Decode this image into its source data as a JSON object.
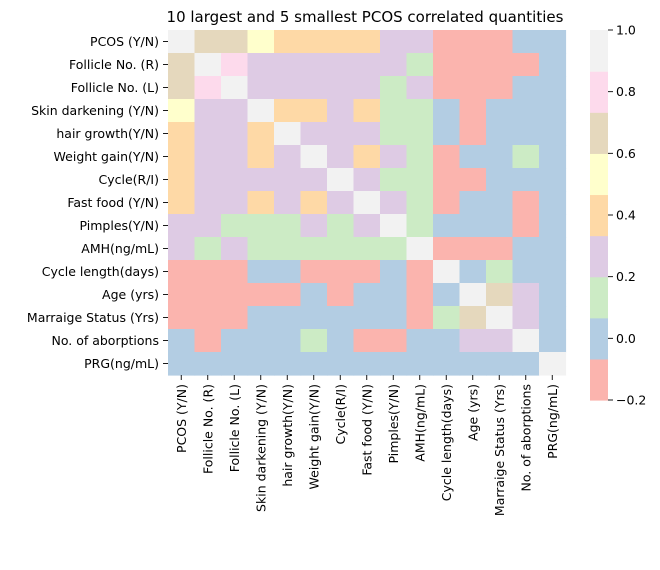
{
  "chart_data": {
    "type": "heatmap",
    "title": "10 largest and 5 smallest PCOS correlated quantities",
    "xlabel": "",
    "ylabel": "",
    "labels": [
      "PCOS (Y/N)",
      "Follicle No. (R)",
      "Follicle No. (L)",
      "Skin darkening (Y/N)",
      "hair growth(Y/N)",
      "Weight gain(Y/N)",
      "Cycle(R/I)",
      "Fast food (Y/N)",
      "Pimples(Y/N)",
      "AMH(ng/mL)",
      "Cycle length(days)",
      "Age (yrs)",
      "Marraige Status (Yrs)",
      "No. of aborptions",
      "PRG(ng/mL)"
    ],
    "values": [
      [
        1.0,
        0.65,
        0.65,
        0.5,
        0.45,
        0.45,
        0.45,
        0.45,
        0.25,
        0.25,
        -0.15,
        -0.15,
        -0.15,
        0.0,
        0.0
      ],
      [
        0.65,
        1.0,
        0.8,
        0.25,
        0.25,
        0.25,
        0.25,
        0.25,
        0.25,
        0.15,
        -0.15,
        -0.15,
        -0.15,
        -0.15,
        0.0
      ],
      [
        0.65,
        0.8,
        1.0,
        0.25,
        0.25,
        0.25,
        0.25,
        0.25,
        0.15,
        0.25,
        -0.15,
        -0.15,
        -0.15,
        0.0,
        0.0
      ],
      [
        0.5,
        0.25,
        0.25,
        1.0,
        0.45,
        0.45,
        0.25,
        0.45,
        0.15,
        0.15,
        0.0,
        -0.15,
        0.0,
        0.0,
        0.0
      ],
      [
        0.45,
        0.25,
        0.25,
        0.45,
        1.0,
        0.25,
        0.25,
        0.25,
        0.15,
        0.15,
        0.0,
        -0.15,
        0.0,
        0.0,
        0.0
      ],
      [
        0.45,
        0.25,
        0.25,
        0.45,
        0.25,
        1.0,
        0.25,
        0.45,
        0.25,
        0.15,
        -0.15,
        0.0,
        0.0,
        0.15,
        0.0
      ],
      [
        0.45,
        0.25,
        0.25,
        0.25,
        0.25,
        0.25,
        1.0,
        0.25,
        0.15,
        0.15,
        -0.15,
        -0.15,
        0.0,
        0.0,
        0.0
      ],
      [
        0.45,
        0.25,
        0.25,
        0.45,
        0.25,
        0.45,
        0.25,
        1.0,
        0.25,
        0.15,
        -0.15,
        0.0,
        0.0,
        -0.15,
        0.0
      ],
      [
        0.25,
        0.25,
        0.15,
        0.15,
        0.15,
        0.25,
        0.15,
        0.25,
        1.0,
        0.15,
        0.0,
        0.0,
        0.0,
        -0.15,
        0.0
      ],
      [
        0.25,
        0.15,
        0.25,
        0.15,
        0.15,
        0.15,
        0.15,
        0.15,
        0.15,
        1.0,
        -0.15,
        -0.15,
        -0.15,
        0.0,
        0.0
      ],
      [
        -0.15,
        -0.15,
        -0.15,
        0.0,
        0.0,
        -0.15,
        -0.15,
        -0.15,
        0.0,
        -0.15,
        1.0,
        0.0,
        0.15,
        0.0,
        0.0
      ],
      [
        -0.15,
        -0.15,
        -0.15,
        -0.15,
        -0.15,
        0.0,
        -0.15,
        0.0,
        0.0,
        -0.15,
        0.0,
        1.0,
        0.65,
        0.25,
        0.0
      ],
      [
        -0.15,
        -0.15,
        -0.15,
        0.0,
        0.0,
        0.0,
        0.0,
        0.0,
        0.0,
        -0.15,
        0.15,
        0.65,
        1.0,
        0.25,
        0.0
      ],
      [
        0.0,
        -0.15,
        0.0,
        0.0,
        0.0,
        0.15,
        0.0,
        -0.15,
        -0.15,
        0.0,
        0.0,
        0.25,
        0.25,
        1.0,
        0.0
      ],
      [
        0.0,
        0.0,
        0.0,
        0.0,
        0.0,
        0.0,
        0.0,
        0.0,
        0.0,
        0.0,
        0.0,
        0.0,
        0.0,
        0.0,
        1.0
      ]
    ],
    "colorbar": {
      "vmin": -0.2,
      "vmax": 1.0,
      "ticks": [
        "1.0",
        "0.8",
        "0.6",
        "0.4",
        "0.2",
        "0.0",
        "−0.2"
      ],
      "tick_values": [
        1.0,
        0.8,
        0.6,
        0.4,
        0.2,
        0.0,
        -0.2
      ],
      "palette": [
        "#fbb4ae",
        "#b3cde3",
        "#ccebc5",
        "#decbe4",
        "#fed9a6",
        "#ffffcc",
        "#e5d8bd",
        "#fddaec",
        "#f2f2f2"
      ]
    }
  }
}
